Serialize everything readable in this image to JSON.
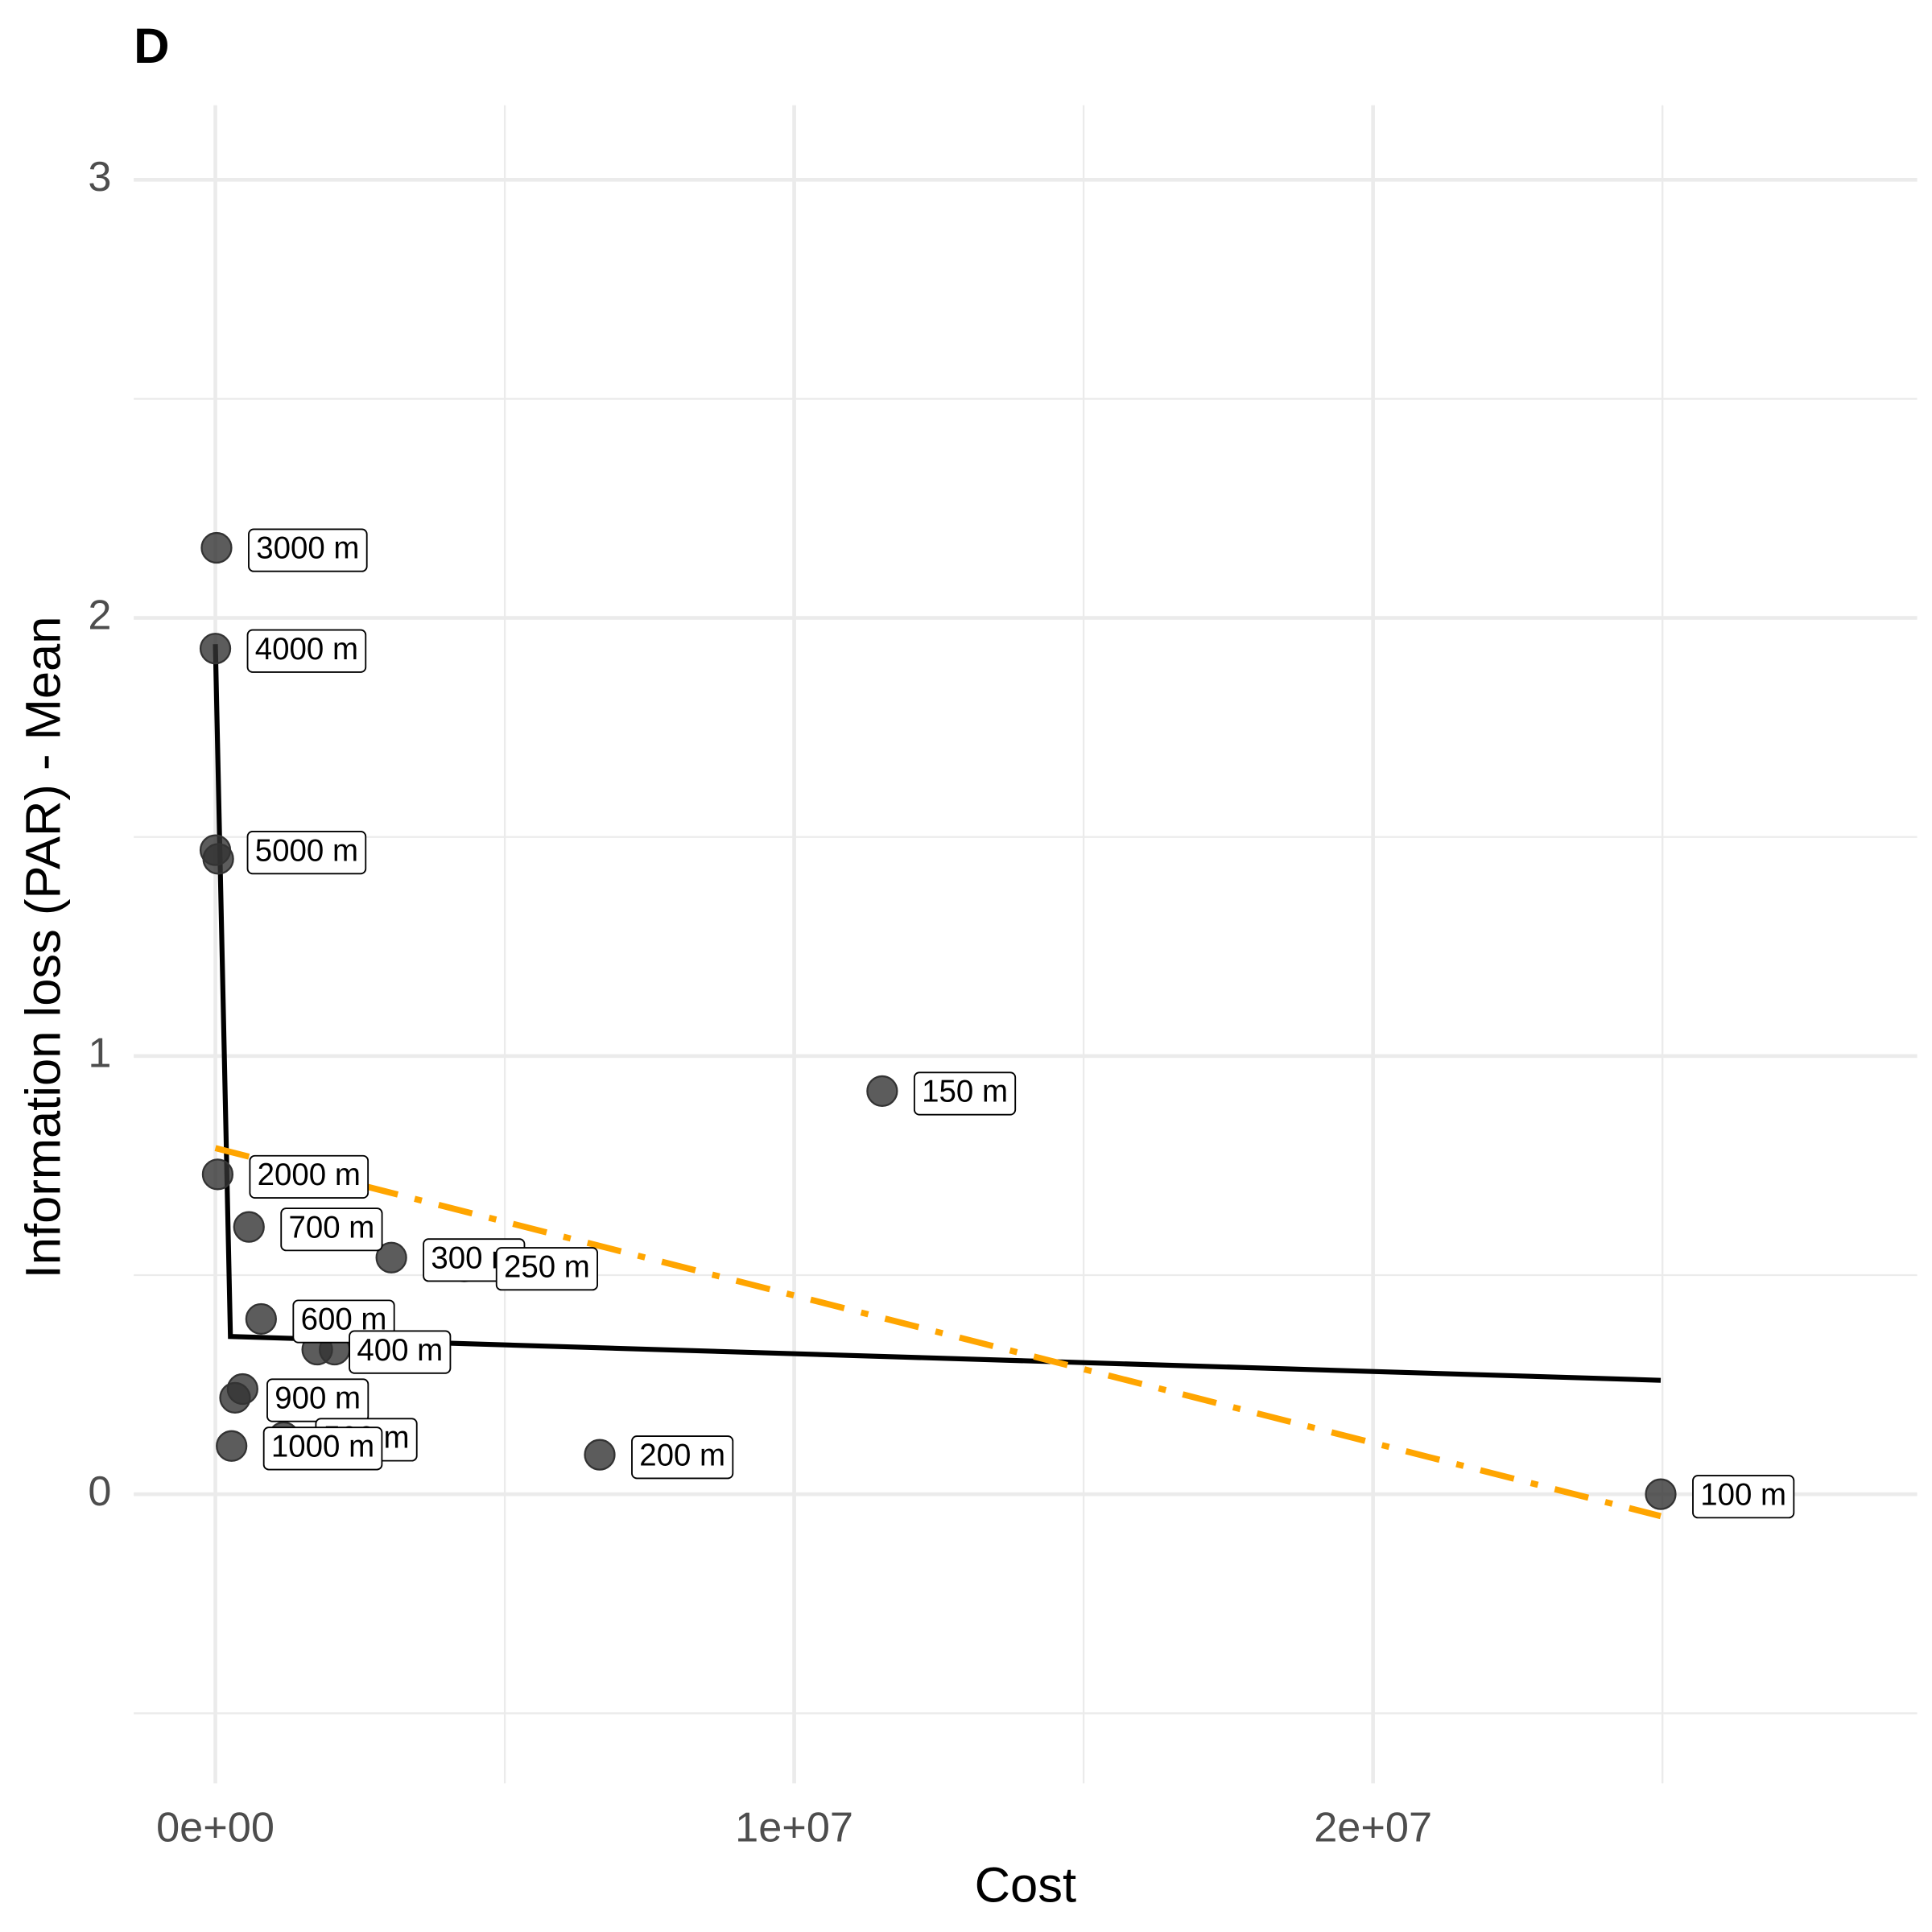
{
  "chart_data": {
    "type": "scatter",
    "title": "D",
    "x_label": "Cost",
    "y_label": "Information loss (PAR) - Mean",
    "xlim": [
      -1410000,
      29400000
    ],
    "ylim": [
      -0.66,
      3.17
    ],
    "xticks": [
      {
        "value": 0,
        "label": "0e+00"
      },
      {
        "value": 10000000,
        "label": "1e+07"
      },
      {
        "value": 20000000,
        "label": "2e+07"
      }
    ],
    "yticks": [
      0,
      1,
      2,
      3
    ],
    "x_minor_grid": [
      5000000,
      15000000,
      25000000
    ],
    "y_minor_grid": [
      -0.5,
      0.5,
      1.5,
      2.5
    ],
    "grid": true,
    "series": [
      {
        "color": "#333333",
        "x": [
          20000,
          0,
          0,
          50000,
          40000,
          580000,
          3040000,
          4300000,
          790000,
          1760000,
          2060000,
          470000,
          340000,
          1180000,
          280000,
          6640000,
          11520000,
          24970000
        ],
        "values": [
          2.16,
          1.93,
          1.47,
          1.45,
          0.73,
          0.61,
          0.54,
          0.52,
          0.4,
          0.33,
          0.33,
          0.24,
          0.22,
          0.13,
          0.11,
          0.09,
          0.92,
          0.0
        ],
        "labels": [
          "3000 m",
          "4000 m",
          "5000 m",
          null,
          "2000 m",
          "700 m",
          "300 m",
          "250 m",
          "600 m",
          "400 m",
          null,
          null,
          "900 m",
          "500 m",
          "1000 m",
          "200 m",
          "150 m",
          "100 m"
        ]
      }
    ],
    "lines": [
      {
        "color": "#000000",
        "dash": "solid",
        "x": [
          0,
          260000,
          24970000
        ],
        "values": [
          1.94,
          0.36,
          0.26
        ]
      },
      {
        "color": "#FFA500",
        "dash": "dashdot",
        "x": [
          0,
          24970000
        ],
        "values": [
          0.79,
          -0.05
        ]
      }
    ]
  }
}
